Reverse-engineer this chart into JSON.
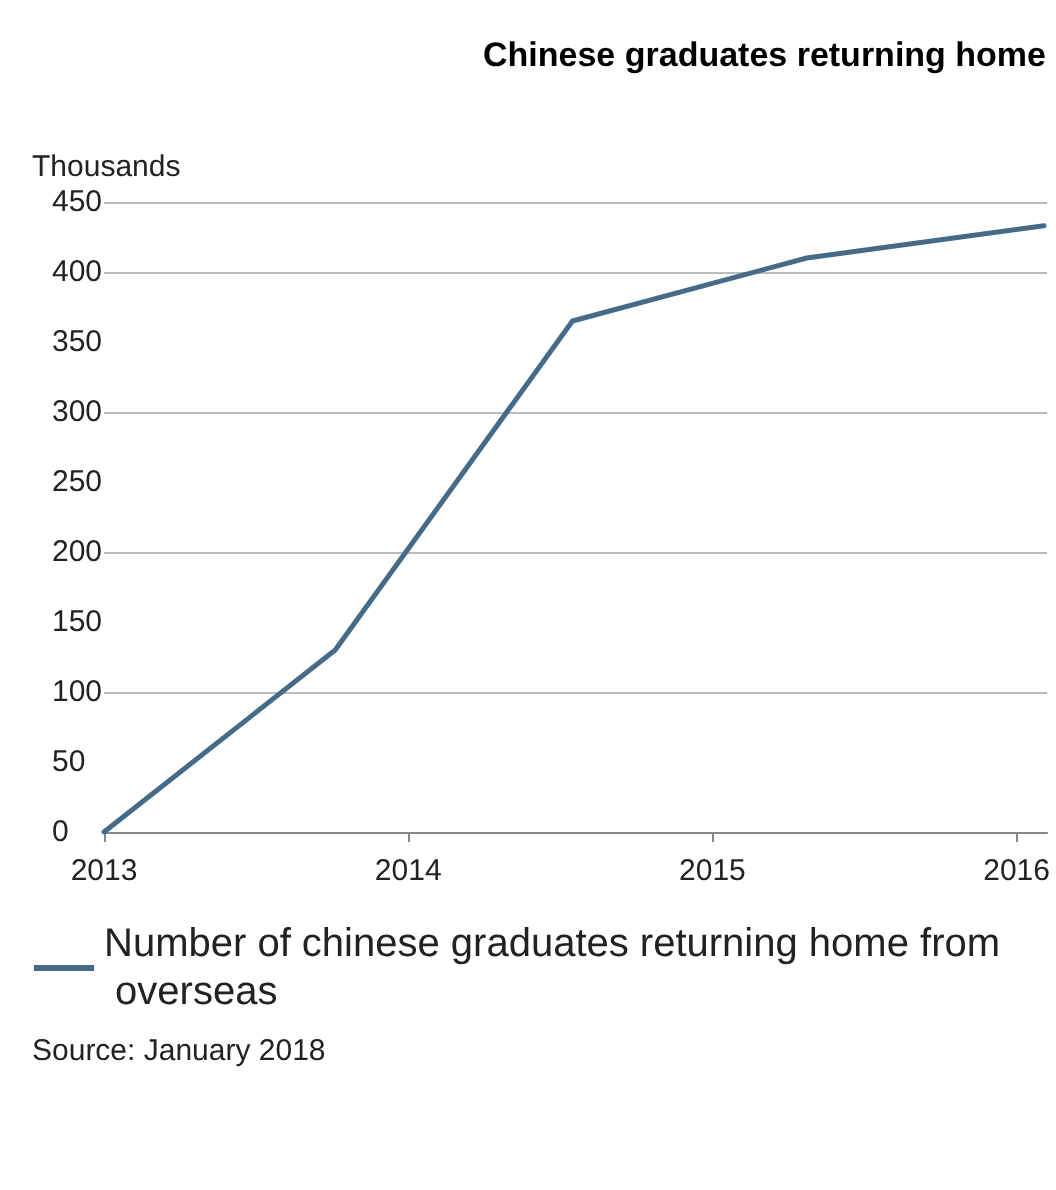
{
  "chart_data": {
    "type": "line",
    "title": "Chinese graduates returning home",
    "ylabel": "Thousands",
    "x": [
      2013,
      2013.76,
      2014.54,
      2015.31,
      2016.09
    ],
    "series": [
      {
        "name": "Number of chinese graduates returning home from overseas",
        "color": "#456b88",
        "values": [
          0,
          130,
          365,
          410,
          433
        ]
      }
    ],
    "xlim": [
      2013,
      2016.1
    ],
    "xticks": [
      2013,
      2014,
      2015,
      2016
    ],
    "ylim": [
      0,
      450
    ],
    "yticks": [
      0,
      50,
      100,
      150,
      200,
      250,
      300,
      350,
      400,
      450
    ],
    "grid": "y",
    "legend": "bottom left",
    "marker": "none",
    "line_style": "solid",
    "annotations": [
      "Source: January 2018"
    ]
  }
}
